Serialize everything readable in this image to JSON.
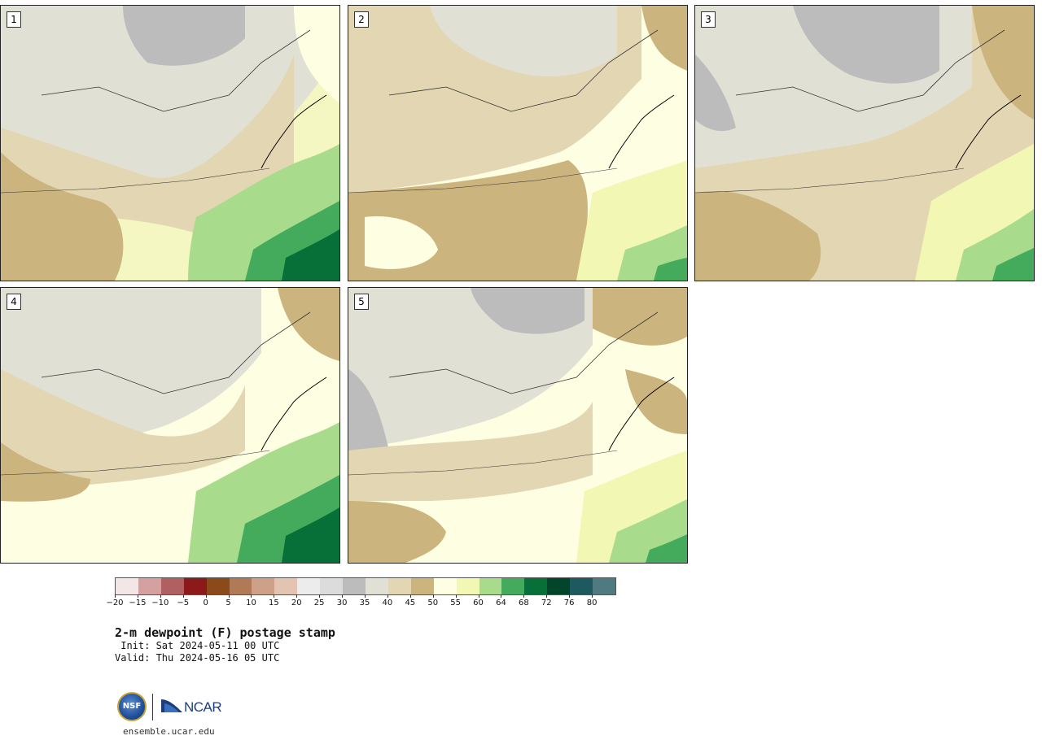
{
  "panels": [
    {
      "label": "1"
    },
    {
      "label": "2"
    },
    {
      "label": "3"
    },
    {
      "label": "4"
    },
    {
      "label": "5"
    }
  ],
  "colorbar": {
    "colors": [
      "#f2e6e6",
      "#d4a0a0",
      "#b06060",
      "#8c1a1a",
      "#8a4a1a",
      "#b07a56",
      "#cfa088",
      "#e3c4b2",
      "#ececec",
      "#dcdcdc",
      "#bcbcbc",
      "#e0e0d4",
      "#e3d6b2",
      "#ccb47e",
      "#fefee2",
      "#f3f7b4",
      "#a8dc8c",
      "#44ab5c",
      "#067038",
      "#02452a",
      "#1e5960",
      "#4e7a80"
    ],
    "tick_labels": [
      "−20",
      "−15",
      "−10",
      "−5",
      "0",
      "5",
      "10",
      "15",
      "20",
      "25",
      "30",
      "35",
      "40",
      "45",
      "50",
      "55",
      "60",
      "64",
      "68",
      "72",
      "76",
      "80"
    ]
  },
  "title": "2-m dewpoint (F) postage stamp",
  "init_line": " Init: Sat 2024-05-11 00 UTC",
  "valid_line": "Valid: Thu 2024-05-16 05 UTC",
  "logos": {
    "nsf": "NSF",
    "ncar": "NCAR"
  },
  "url": "ensemble.ucar.edu"
}
